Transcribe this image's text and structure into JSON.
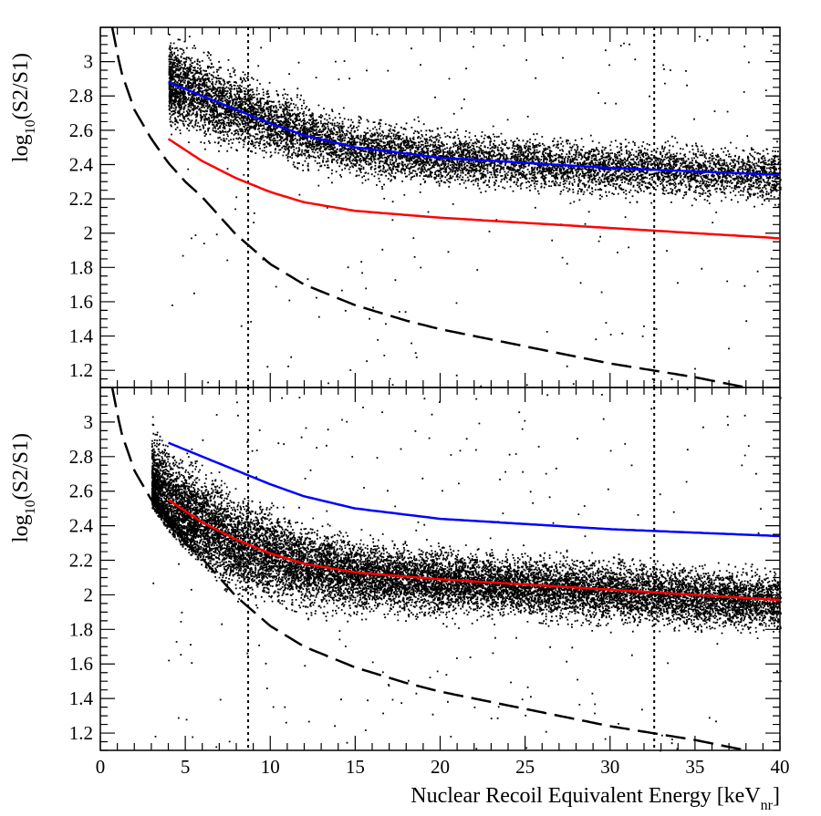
{
  "chart_data": [
    {
      "type": "scatter",
      "panel": "top",
      "ylabel_main": "log",
      "ylabel_sub": "10",
      "ylabel_tail": "(S2/S1)",
      "xlim": [
        0,
        40
      ],
      "ylim": [
        1.1,
        3.2
      ],
      "yticks": [
        "1.2",
        "1.4",
        "1.6",
        "1.8",
        "2",
        "2.2",
        "2.4",
        "2.6",
        "2.8",
        "3"
      ],
      "vertical_lines": [
        8.7,
        32.6
      ],
      "blue_line": {
        "x": [
          4,
          6,
          8,
          10,
          12,
          15,
          20,
          25,
          30,
          35,
          40
        ],
        "y": [
          2.88,
          2.8,
          2.72,
          2.64,
          2.57,
          2.5,
          2.44,
          2.41,
          2.38,
          2.36,
          2.34
        ]
      },
      "red_line": {
        "x": [
          4,
          6,
          8,
          10,
          12,
          15,
          20,
          25,
          30,
          35,
          40
        ],
        "y": [
          2.55,
          2.42,
          2.32,
          2.24,
          2.18,
          2.13,
          2.09,
          2.06,
          2.03,
          2.0,
          1.97
        ]
      },
      "dashed_line": {
        "x": [
          0.7,
          1.2,
          2,
          3,
          4,
          5,
          6,
          8,
          10,
          12,
          15,
          18,
          20,
          25,
          30,
          35,
          38
        ],
        "y": [
          3.2,
          2.95,
          2.72,
          2.55,
          2.41,
          2.3,
          2.21,
          1.99,
          1.82,
          1.7,
          1.58,
          1.49,
          1.44,
          1.34,
          1.24,
          1.16,
          1.1
        ]
      },
      "scatter_band": {
        "x": [
          4,
          6,
          8,
          10,
          12,
          15,
          20,
          25,
          30,
          35,
          40
        ],
        "center": [
          2.88,
          2.8,
          2.72,
          2.64,
          2.57,
          2.5,
          2.44,
          2.41,
          2.38,
          2.36,
          2.34
        ],
        "spread": [
          0.14,
          0.14,
          0.13,
          0.12,
          0.11,
          0.1,
          0.09,
          0.09,
          0.09,
          0.09,
          0.09
        ]
      }
    },
    {
      "type": "scatter",
      "panel": "bottom",
      "ylabel_main": "log",
      "ylabel_sub": "10",
      "ylabel_tail": "(S2/S1)",
      "xlabel_main": "Nuclear Recoil Equivalent Energy [keV",
      "xlabel_sub": "nr",
      "xlabel_tail": "]",
      "xlim": [
        0,
        40
      ],
      "ylim": [
        1.1,
        3.2
      ],
      "xticks": [
        "0",
        "5",
        "10",
        "15",
        "20",
        "25",
        "30",
        "35",
        "40"
      ],
      "yticks": [
        "1.2",
        "1.4",
        "1.6",
        "1.8",
        "2",
        "2.2",
        "2.4",
        "2.6",
        "2.8",
        "3"
      ],
      "vertical_lines": [
        8.7,
        32.6
      ],
      "blue_line": {
        "x": [
          4,
          6,
          8,
          10,
          12,
          15,
          20,
          25,
          30,
          35,
          40
        ],
        "y": [
          2.88,
          2.8,
          2.72,
          2.64,
          2.57,
          2.5,
          2.44,
          2.41,
          2.38,
          2.36,
          2.34
        ]
      },
      "red_line": {
        "x": [
          4,
          6,
          8,
          10,
          12,
          15,
          20,
          25,
          30,
          35,
          40
        ],
        "y": [
          2.55,
          2.42,
          2.32,
          2.24,
          2.18,
          2.13,
          2.09,
          2.06,
          2.03,
          2.0,
          1.97
        ]
      },
      "dashed_line": {
        "x": [
          0.7,
          1.2,
          2,
          3,
          4,
          5,
          6,
          8,
          10,
          12,
          15,
          18,
          20,
          25,
          30,
          35,
          38
        ],
        "y": [
          3.2,
          2.95,
          2.72,
          2.55,
          2.41,
          2.3,
          2.21,
          1.99,
          1.82,
          1.7,
          1.58,
          1.49,
          1.44,
          1.34,
          1.24,
          1.16,
          1.1
        ]
      },
      "scatter_band": {
        "x": [
          3,
          4,
          6,
          8,
          10,
          12,
          15,
          20,
          25,
          30,
          35,
          40
        ],
        "center": [
          2.62,
          2.52,
          2.4,
          2.3,
          2.23,
          2.17,
          2.12,
          2.08,
          2.05,
          2.02,
          1.99,
          1.96
        ],
        "spread": [
          0.18,
          0.18,
          0.17,
          0.16,
          0.15,
          0.14,
          0.12,
          0.11,
          0.1,
          0.1,
          0.1,
          0.1
        ]
      }
    }
  ]
}
